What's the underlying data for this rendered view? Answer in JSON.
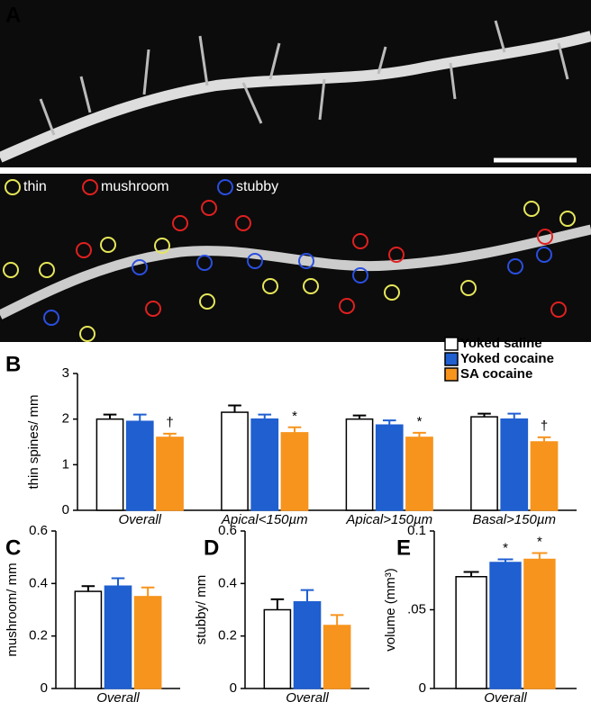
{
  "panel_labels": [
    "A",
    "B",
    "C",
    "D",
    "E"
  ],
  "image_legend": [
    {
      "text": "thin",
      "color": "#e6e65a"
    },
    {
      "text": "mushroom",
      "color": "#e02020"
    },
    {
      "text": "stubby",
      "color": "#2a4fe0"
    }
  ],
  "chart_data": [
    {
      "type": "bar",
      "ylabel": "thin spines/ mm",
      "categories": [
        "Overall",
        "Apical<150µm",
        "Apical>150µm",
        "Basal>150µm"
      ],
      "ylim": [
        0,
        3
      ],
      "yticks": [
        0,
        1,
        2,
        3
      ],
      "legend": "upper right",
      "series": [
        {
          "name": "Yoked saline",
          "color": "#ffffff",
          "values": [
            2.0,
            2.15,
            2.0,
            2.05
          ],
          "errors": [
            0.1,
            0.15,
            0.08,
            0.07
          ]
        },
        {
          "name": "Yoked cocaine",
          "color": "#1f5fd0",
          "values": [
            1.95,
            2.0,
            1.87,
            2.0
          ],
          "errors": [
            0.15,
            0.1,
            0.1,
            0.12
          ]
        },
        {
          "name": "SA cocaine",
          "color": "#f7941d",
          "values": [
            1.6,
            1.7,
            1.6,
            1.5
          ],
          "errors": [
            0.08,
            0.12,
            0.1,
            0.1
          ],
          "annotations": [
            "†",
            "*",
            "*",
            "†"
          ]
        }
      ]
    },
    {
      "type": "bar",
      "ylabel": "mushroom/ mm",
      "categories": [
        "Overall"
      ],
      "ylim": [
        0,
        0.6
      ],
      "yticks": [
        0,
        0.2,
        0.4,
        0.6
      ],
      "series": [
        {
          "color": "#ffffff",
          "values": [
            0.37
          ],
          "errors": [
            0.02
          ]
        },
        {
          "color": "#1f5fd0",
          "values": [
            0.39
          ],
          "errors": [
            0.03
          ]
        },
        {
          "color": "#f7941d",
          "values": [
            0.35
          ],
          "errors": [
            0.035
          ]
        }
      ]
    },
    {
      "type": "bar",
      "ylabel": "stubby/ mm",
      "categories": [
        "Overall"
      ],
      "ylim": [
        0,
        0.6
      ],
      "yticks": [
        0,
        0.2,
        0.4,
        0.6
      ],
      "series": [
        {
          "color": "#ffffff",
          "values": [
            0.3
          ],
          "errors": [
            0.04
          ]
        },
        {
          "color": "#1f5fd0",
          "values": [
            0.33
          ],
          "errors": [
            0.045
          ]
        },
        {
          "color": "#f7941d",
          "values": [
            0.24
          ],
          "errors": [
            0.04
          ]
        }
      ]
    },
    {
      "type": "bar",
      "ylabel": "volume (mm³)",
      "categories": [
        "Overall"
      ],
      "ylim": [
        0,
        0.1
      ],
      "yticks": [
        0,
        {
          "value": 0.05,
          "label": ".05"
        },
        0.1
      ],
      "series": [
        {
          "color": "#ffffff",
          "values": [
            0.071
          ],
          "errors": [
            0.003
          ]
        },
        {
          "color": "#1f5fd0",
          "values": [
            0.08
          ],
          "errors": [
            0.002
          ],
          "annotations": [
            "*"
          ]
        },
        {
          "color": "#f7941d",
          "values": [
            0.082
          ],
          "errors": [
            0.004
          ],
          "annotations": [
            "*"
          ]
        }
      ]
    }
  ]
}
